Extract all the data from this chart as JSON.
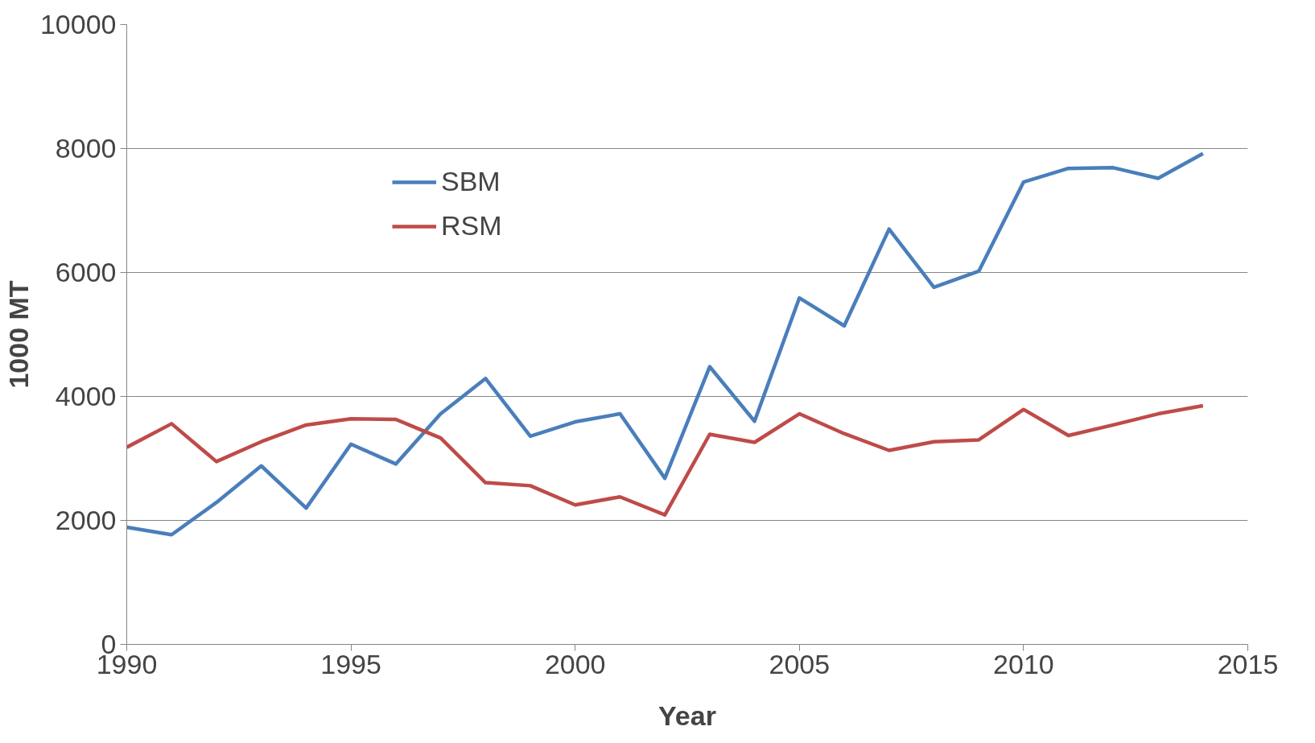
{
  "chart_data": {
    "type": "line",
    "xlabel": "Year",
    "ylabel": "1000 MT",
    "x": [
      1990,
      1991,
      1992,
      1993,
      1994,
      1995,
      1996,
      1997,
      1998,
      1999,
      2000,
      2001,
      2002,
      2003,
      2004,
      2005,
      2006,
      2007,
      2008,
      2009,
      2010,
      2011,
      2012,
      2013,
      2014
    ],
    "series": [
      {
        "name": "SBM",
        "color": "#4a7ebb",
        "values": [
          1890,
          1770,
          2290,
          2880,
          2200,
          3230,
          2910,
          3720,
          4290,
          3360,
          3590,
          3720,
          2680,
          4480,
          3600,
          5590,
          5140,
          6700,
          5760,
          6020,
          7460,
          7680,
          7690,
          7520,
          7920
        ]
      },
      {
        "name": "RSM",
        "color": "#be4b48",
        "values": [
          3180,
          3560,
          2950,
          3270,
          3540,
          3640,
          3630,
          3330,
          2610,
          2560,
          2250,
          2380,
          2090,
          3390,
          3260,
          3720,
          3400,
          3130,
          3270,
          3300,
          3790,
          3370,
          3540,
          3720,
          3850
        ]
      }
    ],
    "xlim": [
      1990,
      2015
    ],
    "xticks": [
      1990,
      1995,
      2000,
      2005,
      2010,
      2015
    ],
    "ylim": [
      0,
      10000
    ],
    "yticks": [
      0,
      2000,
      4000,
      6000,
      8000,
      10000
    ],
    "grid": "y",
    "legend": "top left",
    "marker": "none",
    "line_style": "solid"
  }
}
